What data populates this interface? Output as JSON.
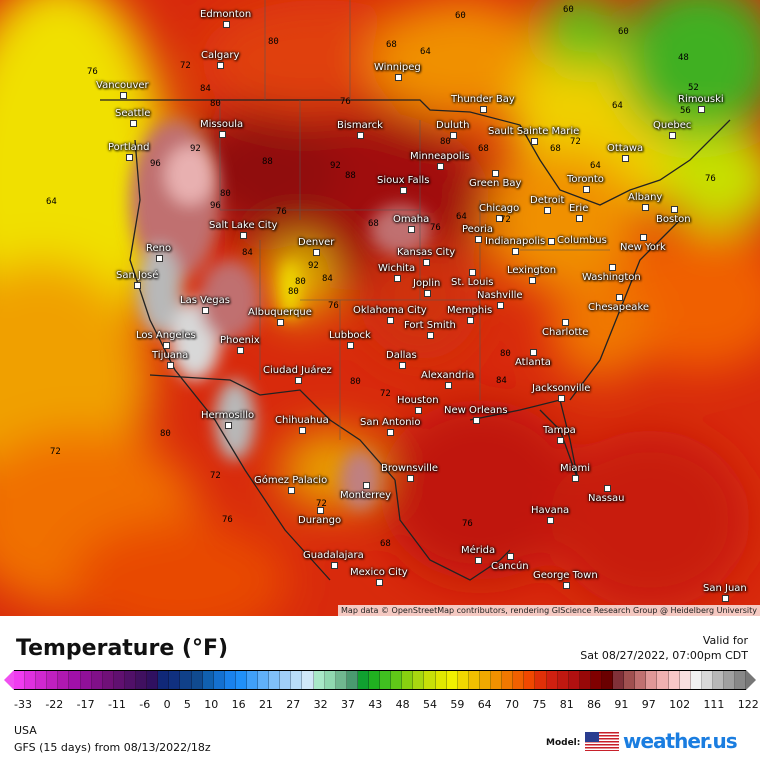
{
  "map": {
    "attribution": "Map data © OpenStreetMap contributors, rendering GIScience Research Group @ Heidelberg University",
    "cities": [
      "Edmonton",
      "Calgary",
      "Vancouver",
      "Seattle",
      "Portland",
      "Missoula",
      "Bismarck",
      "Winnipeg",
      "Thunder Bay",
      "Duluth",
      "Sault Sainte Marie",
      "Minneapolis",
      "Green Bay",
      "Ottawa",
      "Quebec",
      "Rimouski",
      "Toronto",
      "Albany",
      "Boston",
      "Detroit",
      "Erie",
      "Chicago",
      "Sioux Falls",
      "Omaha",
      "Peoria",
      "Indianapolis",
      "Columbus",
      "New York",
      "Washington",
      "Salt Lake City",
      "Reno",
      "Denver",
      "Kansas City",
      "St. Louis",
      "Lexington",
      "Chesapeake",
      "Nashville",
      "Wichita",
      "Joplin",
      "San José",
      "Las Vegas",
      "Oklahoma City",
      "Memphis",
      "Charlotte",
      "Albuquerque",
      "Fort Smith",
      "Los Angeles",
      "Phoenix",
      "Lubbock",
      "Dallas",
      "Atlanta",
      "Tijuana",
      "Ciudad Juárez",
      "Alexandria",
      "Jacksonville",
      "Houston",
      "New Orleans",
      "San Antonio",
      "Hermosillo",
      "Chihuahua",
      "Tampa",
      "Brownsville",
      "Miami",
      "Nassau",
      "Monterrey",
      "Gómez Palacio",
      "Havana",
      "Durango",
      "Mérida",
      "Cancún",
      "Guadalajara",
      "George Town",
      "Mexico City",
      "San Juan"
    ],
    "contour_labels": [
      "80",
      "72",
      "76",
      "84",
      "80",
      "76",
      "68",
      "60",
      "64",
      "60",
      "48",
      "52",
      "56",
      "64",
      "80",
      "76",
      "64",
      "72",
      "68",
      "68",
      "60",
      "96",
      "92",
      "88",
      "92",
      "88",
      "96",
      "80",
      "76",
      "84",
      "92",
      "80",
      "68",
      "64",
      "72",
      "76",
      "84",
      "80",
      "76",
      "80",
      "72",
      "80",
      "84",
      "72",
      "76",
      "68",
      "72",
      "76",
      "72",
      "80",
      "64"
    ]
  },
  "legend": {
    "title": "Temperature (°F)",
    "valid_label": "Valid for",
    "valid_time": "Sat 08/27/2022, 07:00pm CDT",
    "ticks": [
      "-33",
      "-22",
      "-17",
      "-11",
      "-6",
      "0",
      "5",
      "10",
      "16",
      "21",
      "27",
      "32",
      "37",
      "43",
      "48",
      "54",
      "59",
      "64",
      "70",
      "75",
      "81",
      "86",
      "91",
      "97",
      "102",
      "111",
      "122"
    ],
    "colors": [
      "#f03cf0",
      "#e030e0",
      "#d028d0",
      "#c020c0",
      "#b018b0",
      "#a010a8",
      "#901098",
      "#801088",
      "#701078",
      "#601070",
      "#501068",
      "#401060",
      "#301060",
      "#102878",
      "#103080",
      "#104088",
      "#104a90",
      "#1060b0",
      "#1470d0",
      "#1a82ec",
      "#2090f8",
      "#40a0f8",
      "#60b0f8",
      "#80c0f8",
      "#a0cef8",
      "#b8dcf8",
      "#d0e8f8",
      "#a8e8c8",
      "#90d8b0",
      "#70b890",
      "#4a9a70",
      "#10a030",
      "#20b020",
      "#40c020",
      "#60c818",
      "#88d010",
      "#a8d810",
      "#c8e008",
      "#e0e800",
      "#f0f000",
      "#f0d800",
      "#f0c000",
      "#f0a800",
      "#f09000",
      "#f07800",
      "#f06000",
      "#f04800",
      "#e03008",
      "#d02010",
      "#c01810",
      "#b01010",
      "#980808",
      "#800000",
      "#6a0000",
      "#803038",
      "#a05050",
      "#c07070",
      "#e09898",
      "#f0b0b0",
      "#f8c8c8",
      "#f8e0e0",
      "#f0f0f0",
      "#d8d8d8",
      "#b8b8b8",
      "#a0a0a0",
      "#888888"
    ],
    "region": "USA",
    "model_run": "GFS (15 days) from  08/13/2022/18z",
    "model_label": "Model:",
    "brand": "weather.us"
  }
}
